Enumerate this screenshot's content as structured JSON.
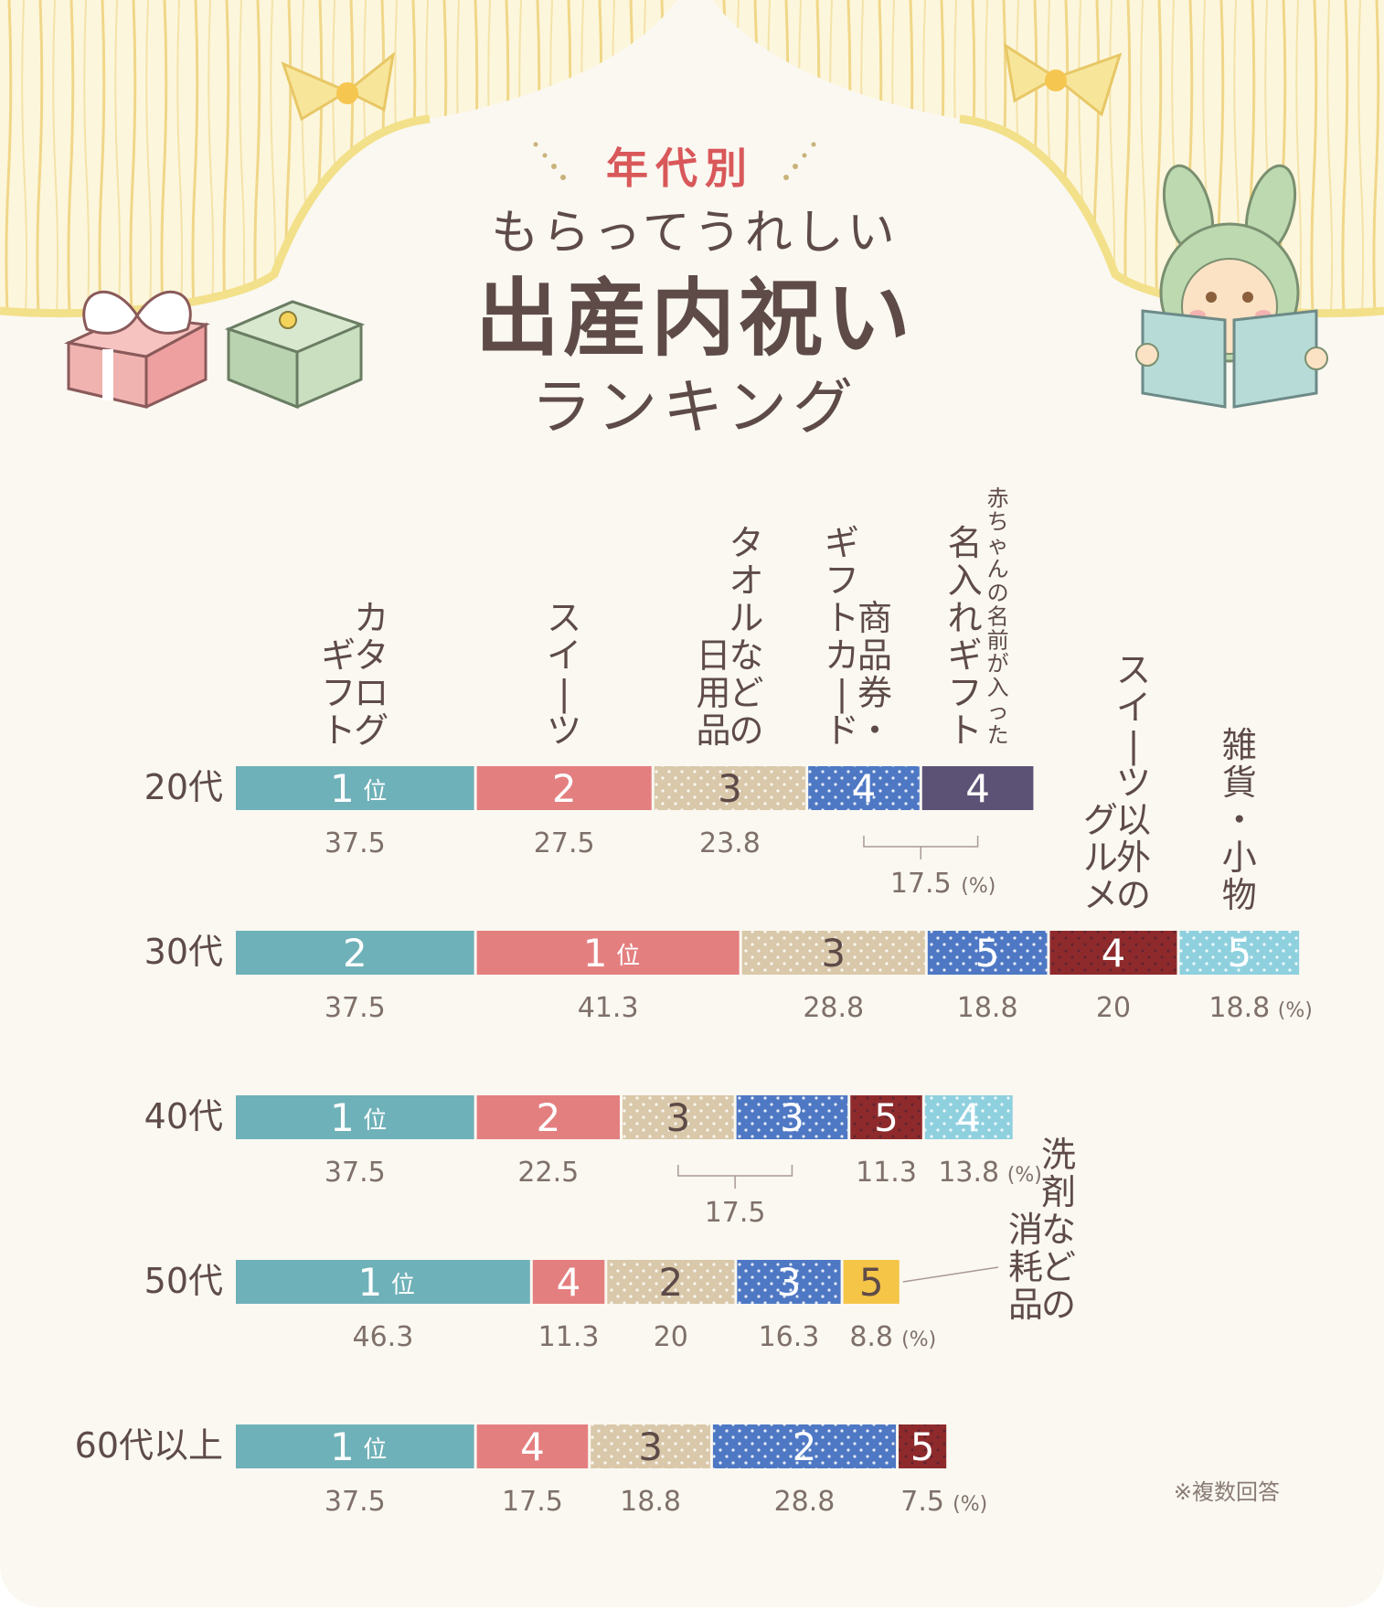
{
  "header": {
    "kicker": "年代別",
    "line1": "もらってうれしい",
    "line2": "出産内祝い",
    "line3": "ランキング"
  },
  "note": "※複数回答",
  "chart_data": {
    "type": "bar",
    "orientation": "horizontal-stacked-segments",
    "unit": "%",
    "categories": {
      "catalog": "カタログギフト",
      "sweets": "スイーツ",
      "towel": "タオルなどの日用品",
      "giftcard": "商品券・ギフトカード",
      "name": "赤ちゃんの名前が入った名入れギフト",
      "gourmet": "スイーツ以外のグルメ",
      "goods": "雑貨・小物",
      "detergent": "洗剤などの消耗品"
    },
    "category_label_lines": {
      "catalog": [
        "カタログ",
        "ギフト"
      ],
      "sweets": [
        "スイーツ"
      ],
      "towel": [
        "タオルなどの",
        "日用品"
      ],
      "giftcard": [
        "商品券・",
        "ギフトカード"
      ],
      "name": [
        "赤ちゃんの名前が入った",
        "名入れギフト"
      ],
      "gourmet": [
        "スイーツ以外の",
        "グルメ"
      ],
      "goods": [
        "雑貨・小物"
      ],
      "detergent": [
        "洗剤などの",
        "消耗品"
      ]
    },
    "category_colors": {
      "catalog": "#6fb1b8",
      "sweets": "#e47f80",
      "towel": "#d9c8a9",
      "giftcard": "#4e78c4",
      "name": "#5b5275",
      "gourmet": "#8e2a2c",
      "goods": "#8fd0df",
      "detergent": "#f5c548"
    },
    "patterned_categories": [
      "towel",
      "giftcard",
      "gourmet",
      "goods"
    ],
    "rows": [
      {
        "label": "20代",
        "segments": [
          {
            "category": "catalog",
            "rank": "1",
            "value": 37.5,
            "value_label": "37.5"
          },
          {
            "category": "sweets",
            "rank": "2",
            "value": 27.5,
            "value_label": "27.5"
          },
          {
            "category": "towel",
            "rank": "3",
            "value": 23.8,
            "value_label": "23.8"
          },
          {
            "category": "giftcard",
            "rank": "4",
            "value": 17.5,
            "value_label": ""
          },
          {
            "category": "name",
            "rank": "4",
            "value": 17.5,
            "value_label": ""
          }
        ],
        "shared_value_label": "17.5",
        "shared_between": [
          3,
          4
        ],
        "unit_after": "shared"
      },
      {
        "label": "30代",
        "segments": [
          {
            "category": "catalog",
            "rank": "2",
            "value": 37.5,
            "value_label": "37.5"
          },
          {
            "category": "sweets",
            "rank": "1",
            "value": 41.3,
            "value_label": "41.3"
          },
          {
            "category": "towel",
            "rank": "3",
            "value": 28.8,
            "value_label": "28.8"
          },
          {
            "category": "giftcard",
            "rank": "5",
            "value": 18.8,
            "value_label": "18.8"
          },
          {
            "category": "gourmet",
            "rank": "4",
            "value": 20,
            "value_label": "20"
          },
          {
            "category": "goods",
            "rank": "5",
            "value": 18.8,
            "value_label": "18.8"
          }
        ],
        "unit_after": 5
      },
      {
        "label": "40代",
        "segments": [
          {
            "category": "catalog",
            "rank": "1",
            "value": 37.5,
            "value_label": "37.5"
          },
          {
            "category": "sweets",
            "rank": "2",
            "value": 22.5,
            "value_label": "22.5"
          },
          {
            "category": "towel",
            "rank": "3",
            "value": 17.5,
            "value_label": ""
          },
          {
            "category": "giftcard",
            "rank": "3",
            "value": 17.5,
            "value_label": ""
          },
          {
            "category": "gourmet",
            "rank": "5",
            "value": 11.3,
            "value_label": "11.3"
          },
          {
            "category": "goods",
            "rank": "4",
            "value": 13.8,
            "value_label": "13.8"
          }
        ],
        "shared_value_label": "17.5",
        "shared_between": [
          2,
          3
        ],
        "unit_after": 5
      },
      {
        "label": "50代",
        "segments": [
          {
            "category": "catalog",
            "rank": "1",
            "value": 46.3,
            "value_label": "46.3"
          },
          {
            "category": "sweets",
            "rank": "4",
            "value": 11.3,
            "value_label": "11.3"
          },
          {
            "category": "towel",
            "rank": "2",
            "value": 20,
            "value_label": "20"
          },
          {
            "category": "giftcard",
            "rank": "3",
            "value": 16.3,
            "value_label": "16.3"
          },
          {
            "category": "detergent",
            "rank": "5",
            "value": 8.8,
            "value_label": "8.8"
          }
        ],
        "unit_after": 4
      },
      {
        "label": "60代以上",
        "segments": [
          {
            "category": "catalog",
            "rank": "1",
            "value": 37.5,
            "value_label": "37.5"
          },
          {
            "category": "sweets",
            "rank": "4",
            "value": 17.5,
            "value_label": "17.5"
          },
          {
            "category": "towel",
            "rank": "3",
            "value": 18.8,
            "value_label": "18.8"
          },
          {
            "category": "giftcard",
            "rank": "2",
            "value": 28.8,
            "value_label": "28.8"
          },
          {
            "category": "gourmet",
            "rank": "5",
            "value": 7.5,
            "value_label": "7.5"
          }
        ],
        "unit_after": 4
      }
    ],
    "rank_suffix": "位",
    "unit_label": "(%)"
  },
  "colors": {
    "background": "#faf8f1",
    "text": "#5e4b48",
    "kicker": "#d9585a",
    "value_text": "#7f706a"
  }
}
